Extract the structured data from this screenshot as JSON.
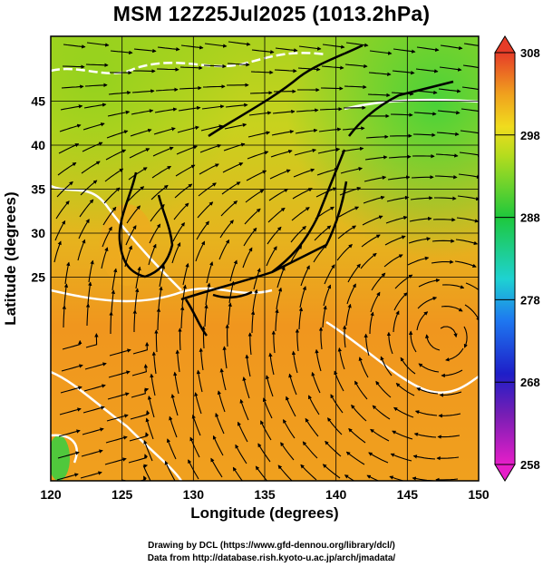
{
  "title": "MSM 12Z25Jul2025 (1013.2hPa)",
  "x_axis": {
    "label": "Longitude (degrees)",
    "ticks": [
      "120",
      "125",
      "130",
      "135",
      "140",
      "145",
      "150"
    ]
  },
  "y_axis": {
    "label": "Latitude  (degrees)",
    "ticks": [
      "25",
      "30",
      "35",
      "40",
      "45"
    ]
  },
  "colorbar": {
    "ticks": [
      "308",
      "298",
      "288",
      "278",
      "268",
      "258"
    ]
  },
  "credits": {
    "line1": "Drawing by DCL (https://www.gfd-dennou.org/library/dcl/)",
    "line2": "Data from http://database.rish.kyoto-u.ac.jp/arch/jmadata/"
  },
  "colors": {
    "warm": "#f0961e",
    "mid": "#c8d21e",
    "cool": "#3cd23c",
    "contour": "#ffffff",
    "land_outline": "#000000"
  }
}
